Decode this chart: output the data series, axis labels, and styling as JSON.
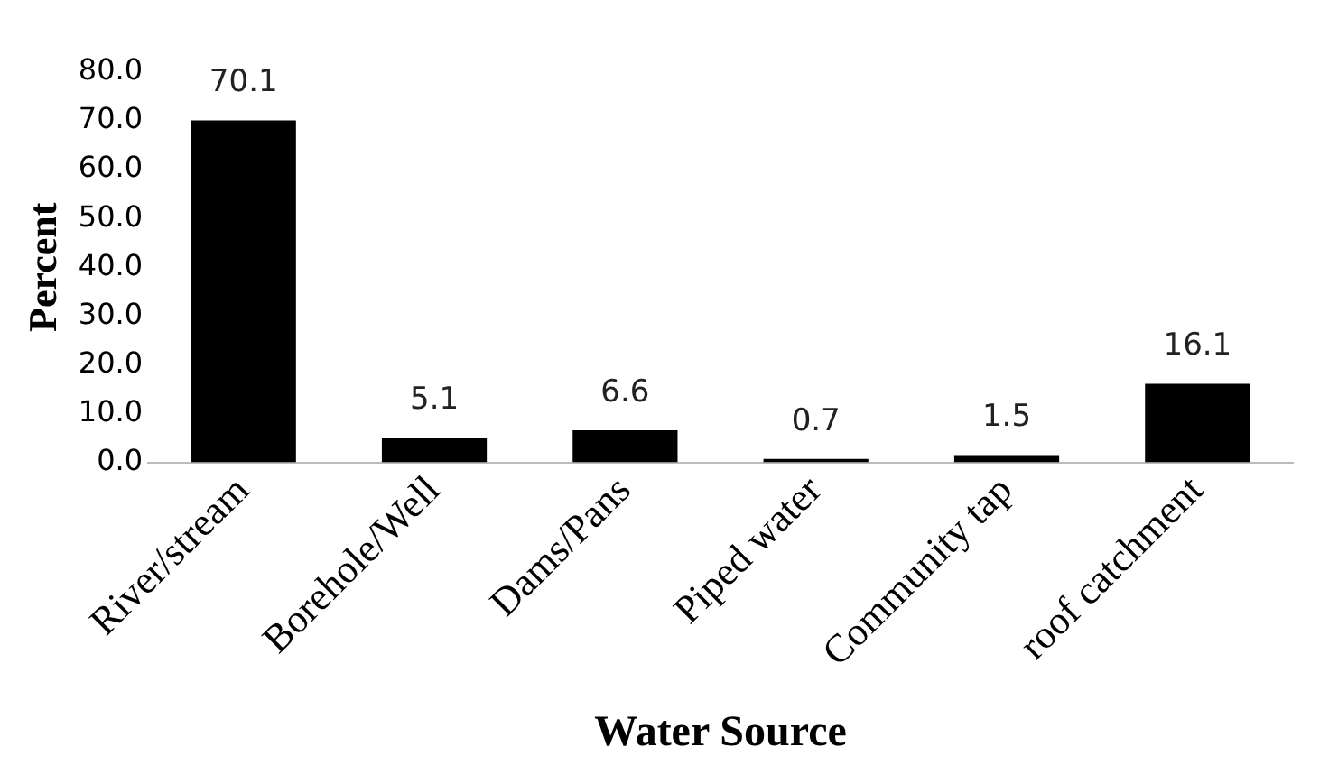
{
  "chart_data": {
    "type": "bar",
    "xlabel": "Water Source",
    "ylabel": "Percent",
    "categories": [
      "River/stream",
      "Borehole/Well",
      "Dams/Pans",
      "Piped water",
      "Community tap",
      "roof catchment"
    ],
    "values": [
      70.1,
      5.1,
      6.6,
      0.7,
      1.5,
      16.1
    ],
    "color": "#000000",
    "ylim": [
      0,
      80
    ],
    "yticks": [
      {
        "value": 0,
        "label": "0.0"
      },
      {
        "value": 10,
        "label": "10.0"
      },
      {
        "value": 20,
        "label": "20.0"
      },
      {
        "value": 30,
        "label": "30.0"
      },
      {
        "value": 40,
        "label": "40.0"
      },
      {
        "value": 50,
        "label": "50.0"
      },
      {
        "value": 60,
        "label": "60.0"
      },
      {
        "value": 70,
        "label": "70.0"
      },
      {
        "value": 80,
        "label": "80.0"
      }
    ],
    "data_labels": true,
    "grid": false,
    "legend": false
  }
}
